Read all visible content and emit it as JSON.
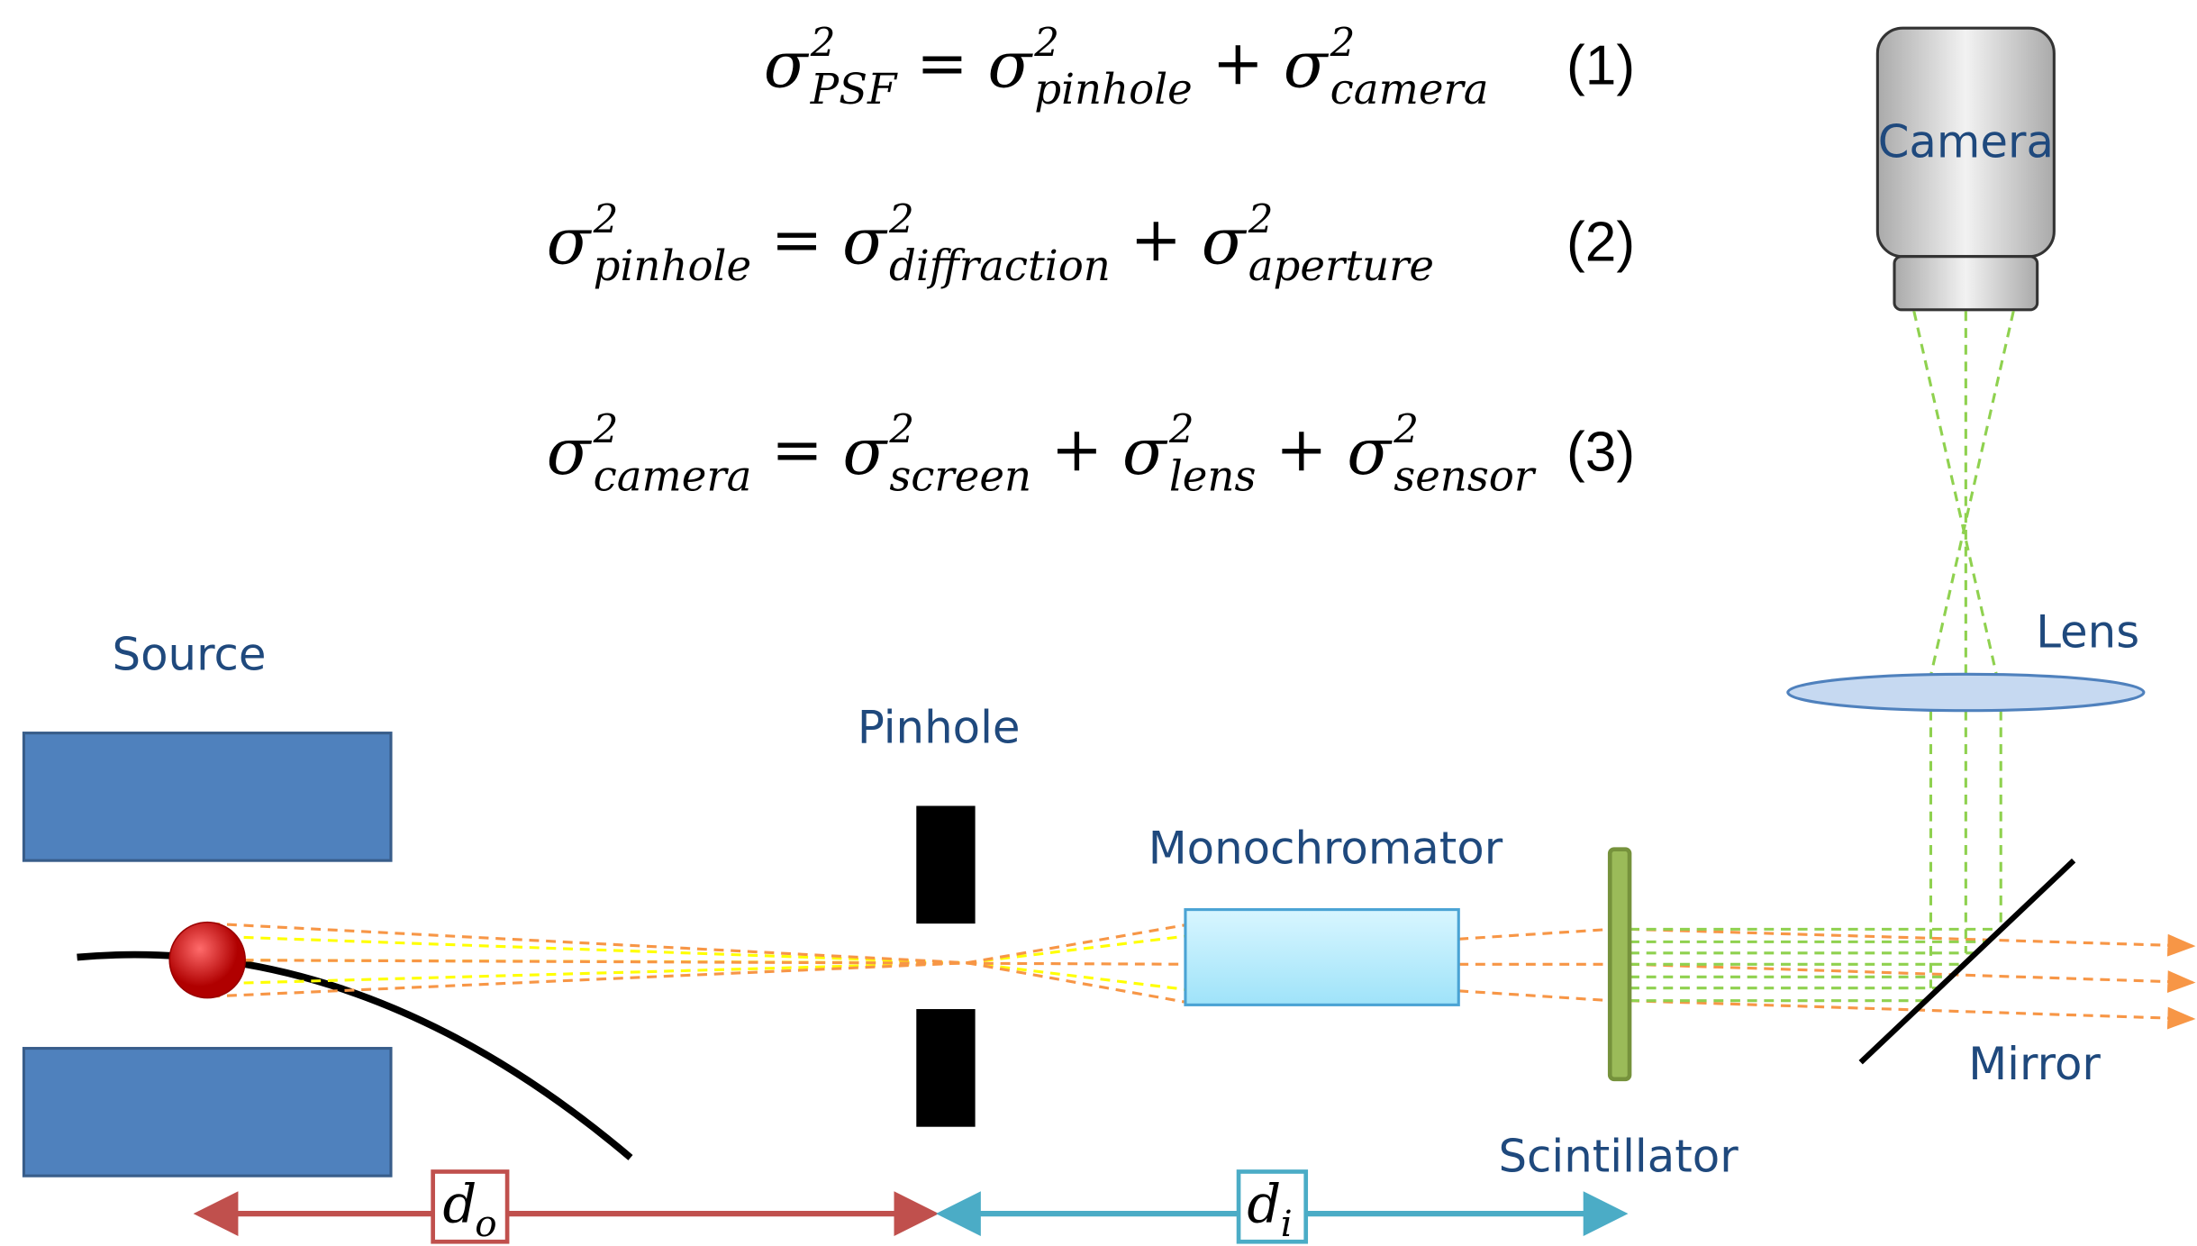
{
  "symbol": "σ",
  "exponent": "2",
  "equals": "=",
  "plus": "+",
  "equations": [
    {
      "lhs": "PSF",
      "rhs": [
        "pinhole",
        "camera"
      ],
      "number": "(1)"
    },
    {
      "lhs": "pinhole",
      "rhs": [
        "diffraction",
        "aperture"
      ],
      "number": "(2)"
    },
    {
      "lhs": "camera",
      "rhs": [
        "screen",
        "lens",
        "sensor"
      ],
      "number": "(3)"
    }
  ],
  "labels": {
    "camera": "Camera",
    "lens": "Lens",
    "source": "Source",
    "pinhole": "Pinhole",
    "monochromator": "Monochromator",
    "scintillator": "Scintillator",
    "mirror": "Mirror"
  },
  "distances": {
    "symbol": "d",
    "object_sub": "o",
    "image_sub": "i"
  }
}
